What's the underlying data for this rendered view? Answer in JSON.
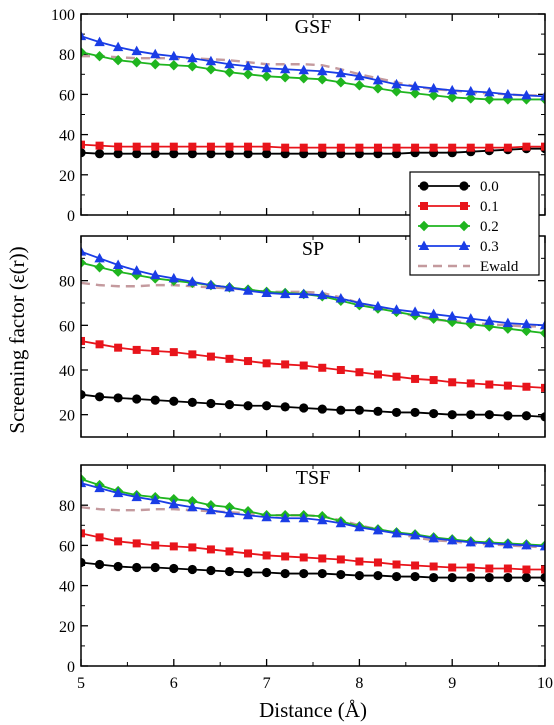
{
  "figure": {
    "ylabel": "Screening factor (ε(r))",
    "xlabel": "Distance (Å)",
    "colors": {
      "0.0": "#000000",
      "0.1": "#e8141b",
      "0.2": "#1fb51f",
      "0.3": "#1a3de6",
      "Ewald": "#c49a9e"
    }
  },
  "legend": {
    "entries": [
      {
        "label": "0.0",
        "marker": "circle",
        "color": "#000000"
      },
      {
        "label": "0.1",
        "marker": "square",
        "color": "#e8141b"
      },
      {
        "label": "0.2",
        "marker": "diamond",
        "color": "#1fb51f"
      },
      {
        "label": "0.3",
        "marker": "triangle",
        "color": "#1a3de6"
      },
      {
        "label": "Ewald",
        "marker": "dashed-line",
        "color": "#c49a9e"
      }
    ],
    "placement": "right side of the top panel"
  },
  "chart_data": [
    {
      "type": "line",
      "title": "GSF",
      "xlabel": "",
      "ylabel": "",
      "xlim": [
        5,
        10
      ],
      "ylim": [
        0,
        100
      ],
      "yticks": [
        0,
        20,
        40,
        60,
        80,
        100
      ],
      "xticks": [
        5,
        6,
        7,
        8,
        9,
        10
      ],
      "x": [
        5.0,
        5.2,
        5.4,
        5.6,
        5.8,
        6.0,
        6.2,
        6.4,
        6.6,
        6.8,
        7.0,
        7.2,
        7.4,
        7.6,
        7.8,
        8.0,
        8.2,
        8.4,
        8.6,
        8.8,
        9.0,
        9.2,
        9.4,
        9.6,
        9.8,
        10.0
      ],
      "series": [
        {
          "name": "0.0",
          "values": [
            31,
            30.5,
            30.5,
            30.5,
            30.5,
            30.5,
            30.5,
            30.5,
            30.5,
            30.5,
            30.5,
            30.5,
            30.5,
            30.5,
            30.5,
            30.5,
            30.5,
            30.5,
            31,
            31,
            31,
            31.5,
            32,
            32.5,
            33,
            33
          ]
        },
        {
          "name": "0.1",
          "values": [
            35,
            34.5,
            34,
            34,
            34,
            34,
            34,
            34,
            34,
            34,
            34,
            33.5,
            33.5,
            33.5,
            33.5,
            33.5,
            33.5,
            33.5,
            33.5,
            33.5,
            33.5,
            33.5,
            33.5,
            33.5,
            34,
            34
          ]
        },
        {
          "name": "0.2",
          "values": [
            81,
            79,
            77,
            76,
            75,
            74.5,
            74,
            72.5,
            71,
            70,
            69,
            68.5,
            68,
            67.5,
            66,
            64.5,
            63,
            61.5,
            60.5,
            59.5,
            58.5,
            58,
            57.5,
            57.5,
            57.5,
            57.5
          ]
        },
        {
          "name": "0.3",
          "values": [
            89,
            86,
            83.5,
            81.5,
            80,
            79,
            78,
            76.5,
            75,
            74,
            73,
            72.5,
            72,
            71.5,
            70.5,
            69,
            67,
            65,
            64,
            63,
            62,
            61.5,
            61,
            60,
            59.5,
            59
          ]
        },
        {
          "name": "Ewald",
          "values": [
            79,
            79,
            78.5,
            78,
            78,
            78,
            78,
            77.5,
            77,
            76,
            75,
            75,
            75,
            74.5,
            72.5,
            70,
            68,
            66,
            64,
            62.5,
            62,
            61,
            60.5,
            60,
            59.5,
            59.5
          ]
        }
      ]
    },
    {
      "type": "line",
      "title": "SP",
      "xlabel": "",
      "ylabel": "",
      "xlim": [
        5,
        10
      ],
      "ylim": [
        10,
        100
      ],
      "yticks": [
        20,
        40,
        60,
        80
      ],
      "xticks": [
        5,
        6,
        7,
        8,
        9,
        10
      ],
      "x": [
        5.0,
        5.2,
        5.4,
        5.6,
        5.8,
        6.0,
        6.2,
        6.4,
        6.6,
        6.8,
        7.0,
        7.2,
        7.4,
        7.6,
        7.8,
        8.0,
        8.2,
        8.4,
        8.6,
        8.8,
        9.0,
        9.2,
        9.4,
        9.6,
        9.8,
        10.0
      ],
      "series": [
        {
          "name": "0.0",
          "values": [
            29,
            28,
            27.5,
            27,
            26.5,
            26,
            25.5,
            25,
            24.5,
            24,
            24,
            23.5,
            23,
            22.5,
            22,
            22,
            21.5,
            21,
            21,
            20.5,
            20,
            20,
            20,
            19.5,
            19.5,
            19
          ]
        },
        {
          "name": "0.1",
          "values": [
            53,
            51.5,
            50,
            49,
            48.5,
            48,
            47,
            46,
            45,
            44,
            43,
            42.5,
            42,
            41,
            40,
            39,
            38,
            37,
            36,
            35.5,
            34.5,
            34,
            33.5,
            33,
            32.5,
            32
          ]
        },
        {
          "name": "0.2",
          "values": [
            88,
            86,
            84,
            82.5,
            81,
            80,
            79,
            78,
            77,
            76,
            75,
            74.5,
            74,
            73,
            71,
            69,
            67.5,
            66,
            64.5,
            63,
            61.5,
            60.5,
            59.5,
            58.5,
            57.5,
            56.5
          ]
        },
        {
          "name": "0.3",
          "values": [
            93,
            90,
            87,
            84.5,
            82.5,
            81,
            79.5,
            78,
            77,
            75.5,
            74.5,
            74,
            74,
            73.5,
            72,
            70,
            68.5,
            67,
            66,
            65,
            64,
            63,
            62,
            61,
            60.5,
            60
          ]
        },
        {
          "name": "Ewald",
          "values": [
            79,
            78,
            77.5,
            77.5,
            78,
            78,
            77.5,
            77,
            76.5,
            76,
            75,
            75,
            75,
            74.5,
            72.5,
            70,
            68,
            66,
            64,
            62.5,
            62,
            61,
            60.5,
            60,
            59.5,
            59.5
          ]
        }
      ]
    },
    {
      "type": "line",
      "title": "TSF",
      "xlabel": "Distance (Å)",
      "ylabel": "",
      "xlim": [
        5,
        10
      ],
      "ylim": [
        0,
        100
      ],
      "yticks": [
        0,
        20,
        40,
        60,
        80
      ],
      "xticks": [
        5,
        6,
        7,
        8,
        9,
        10
      ],
      "x": [
        5.0,
        5.2,
        5.4,
        5.6,
        5.8,
        6.0,
        6.2,
        6.4,
        6.6,
        6.8,
        7.0,
        7.2,
        7.4,
        7.6,
        7.8,
        8.0,
        8.2,
        8.4,
        8.6,
        8.8,
        9.0,
        9.2,
        9.4,
        9.6,
        9.8,
        10.0
      ],
      "series": [
        {
          "name": "0.0",
          "values": [
            51.5,
            50.5,
            49.5,
            49,
            49,
            48.5,
            48,
            47.5,
            47,
            46.5,
            46.5,
            46,
            46,
            46,
            45.5,
            45,
            45,
            44.5,
            44.5,
            44,
            44,
            44,
            44,
            44,
            44,
            44
          ]
        },
        {
          "name": "0.1",
          "values": [
            66,
            64,
            62,
            61,
            60,
            59.5,
            59,
            58,
            57,
            56,
            55,
            54.5,
            54,
            53.5,
            53,
            52,
            51.5,
            50.5,
            50,
            49.5,
            49,
            49,
            48.5,
            48.5,
            48,
            48
          ]
        },
        {
          "name": "0.2",
          "values": [
            93,
            90,
            87,
            85,
            84,
            83,
            82,
            80,
            79,
            77,
            75,
            75,
            75,
            74.5,
            72,
            69.5,
            68,
            66.5,
            65.5,
            64,
            63,
            62,
            61.5,
            61,
            60.5,
            60
          ]
        },
        {
          "name": "0.3",
          "values": [
            91,
            88.5,
            86,
            84,
            82.5,
            80.5,
            79,
            77.5,
            76,
            75,
            74,
            73.5,
            73.5,
            72.5,
            71,
            69,
            67.5,
            66,
            65,
            63.5,
            62.5,
            61.5,
            61,
            60.5,
            60,
            59.5
          ]
        },
        {
          "name": "Ewald",
          "values": [
            79,
            78,
            77.5,
            77.5,
            78,
            78,
            77.5,
            77,
            76.5,
            76,
            75,
            75,
            75,
            74.5,
            72.5,
            70,
            68,
            66,
            64,
            62.5,
            62,
            61,
            60.5,
            60,
            59.5,
            59
          ]
        }
      ]
    }
  ]
}
